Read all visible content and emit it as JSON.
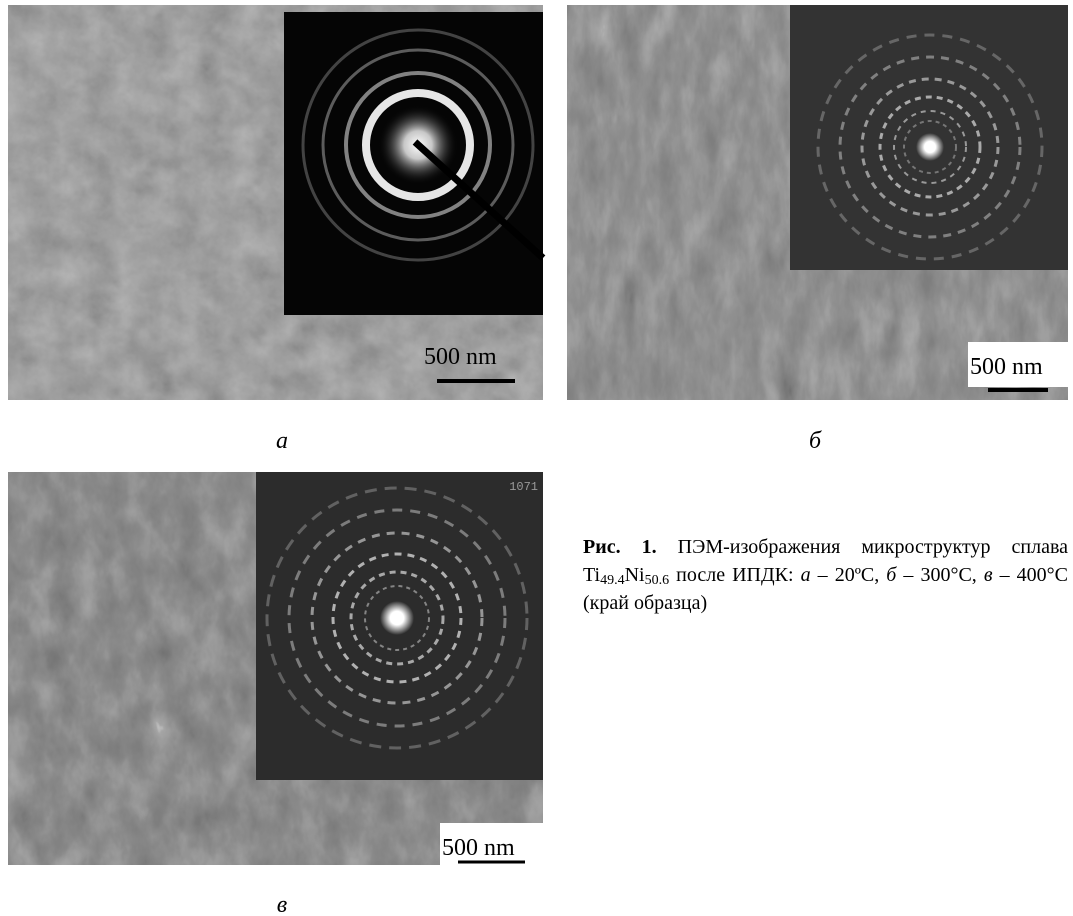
{
  "panels": [
    {
      "label": "а",
      "scale_bar": "500 nm"
    },
    {
      "label": "б",
      "scale_bar": "500 nm"
    },
    {
      "label": "в",
      "scale_bar": "500 nm",
      "inset_code": "1071"
    }
  ],
  "caption": {
    "parts": [
      "Рис. 1.",
      " ПЭМ-изображения микроструктур сплава Ti",
      "49.4",
      "Ni",
      "50.6",
      " после ИПДК: ",
      "а",
      " – 20ºC, ",
      "б",
      " – 300°C, ",
      "в",
      " – 400°C (край образца)"
    ]
  }
}
